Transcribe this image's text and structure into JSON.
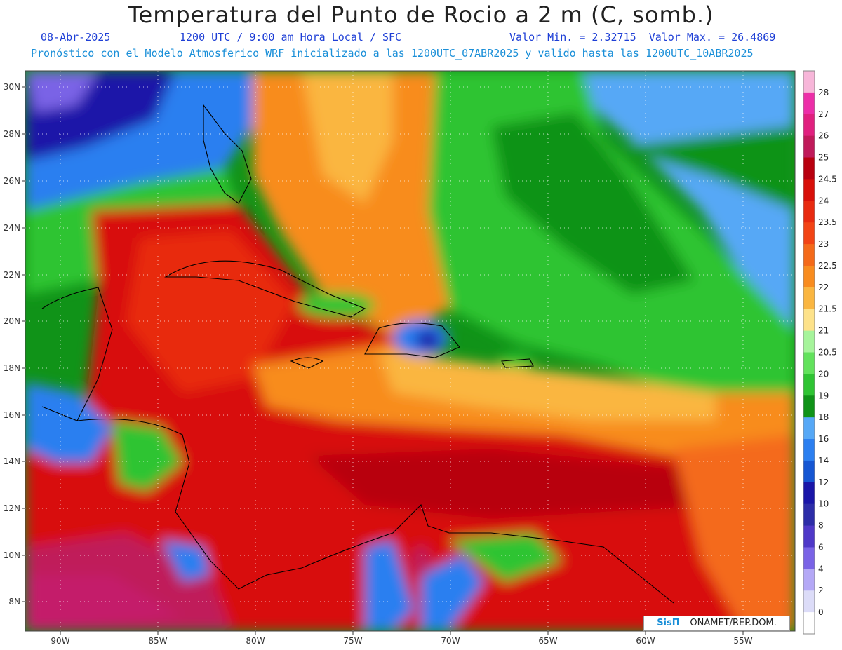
{
  "header": {
    "title": "Temperatura del Punto de Rocio a 2 m (C, somb.)",
    "date": "08-Abr-2025",
    "time": "1200 UTC / 9:00 am Hora Local / SFC",
    "min_label": "Valor Min. = 2.32715",
    "max_label": "Valor Max. = 26.4869",
    "init_line": "Pronóstico con el Modelo Atmosferico WRF inicializado a las 1200UTC_07ABR2025 y valido hasta las  1200UTC_10ABR2025"
  },
  "axes": {
    "lat_labels": [
      "30N",
      "28N",
      "26N",
      "24N",
      "22N",
      "20N",
      "18N",
      "16N",
      "14N",
      "12N",
      "10N",
      "8N"
    ],
    "lon_labels": [
      "90W",
      "85W",
      "80W",
      "75W",
      "70W",
      "65W",
      "60W",
      "55W"
    ]
  },
  "legend": {
    "labels": [
      "28",
      "27",
      "26",
      "25",
      "24.5",
      "24",
      "23.5",
      "23",
      "22.5",
      "22",
      "21.5",
      "21",
      "20.5",
      "20",
      "19",
      "18",
      "16",
      "14",
      "12",
      "10",
      "8",
      "6",
      "4",
      "2",
      "0"
    ],
    "colors": [
      "#f7b6d9",
      "#ec2ea8",
      "#e0207f",
      "#c01a5a",
      "#b8000f",
      "#d8100a",
      "#e82a10",
      "#f24415",
      "#f46a1a",
      "#f88c1f",
      "#fab641",
      "#fde28a",
      "#a6f49b",
      "#62e25c",
      "#2fc433",
      "#109318",
      "#56a8f6",
      "#2c7ff0",
      "#1656d3",
      "#1a16a8",
      "#2d2da8",
      "#4f38c8",
      "#7a63e6",
      "#b4a8f6",
      "#dcdcf8",
      "#ffffff"
    ]
  },
  "logo": {
    "brand": "SisΠ",
    "org": "– ONAMET/REP.DOM."
  }
}
